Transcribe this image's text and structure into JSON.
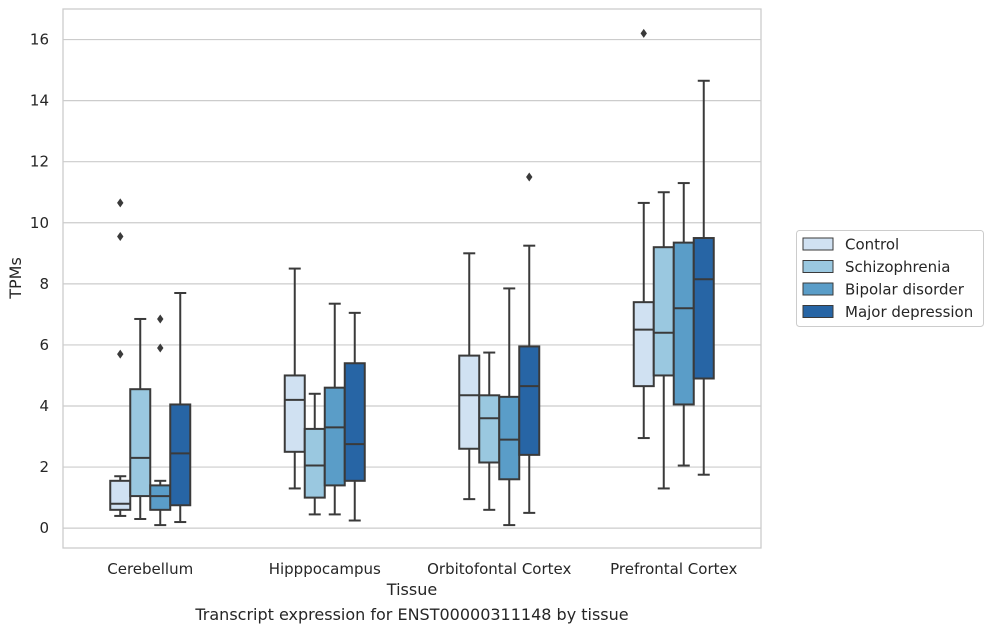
{
  "chart_data": {
    "type": "boxplot",
    "xlabel": "Tissue",
    "ylabel": "TPMs",
    "caption": "Transcript expression for ENST00000311148 by tissue",
    "ylim": [
      -0.65,
      17
    ],
    "y_ticks": [
      0,
      2,
      4,
      6,
      8,
      10,
      12,
      14,
      16
    ],
    "grid": "horizontal",
    "legend_placement": "right",
    "categories": [
      "Cerebellum",
      "Hipppocampus",
      "Orbitofontal Cortex",
      "Prefrontal Cortex"
    ],
    "series": [
      {
        "name": "Control",
        "color": "#d0e1f2",
        "boxes": [
          {
            "whislo": 0.4,
            "q1": 0.6,
            "med": 0.8,
            "q3": 1.55,
            "whishi": 1.7,
            "fliers": [
              5.7,
              9.55,
              10.65
            ]
          },
          {
            "whislo": 1.3,
            "q1": 2.5,
            "med": 4.2,
            "q3": 5.0,
            "whishi": 8.5,
            "fliers": []
          },
          {
            "whislo": 0.95,
            "q1": 2.6,
            "med": 4.35,
            "q3": 5.65,
            "whishi": 9.0,
            "fliers": []
          },
          {
            "whislo": 2.95,
            "q1": 4.65,
            "med": 6.5,
            "q3": 7.4,
            "whishi": 10.65,
            "fliers": [
              16.2
            ]
          }
        ]
      },
      {
        "name": "Schizophrenia",
        "color": "#9ac8e0",
        "boxes": [
          {
            "whislo": 0.3,
            "q1": 1.05,
            "med": 2.3,
            "q3": 4.55,
            "whishi": 6.85,
            "fliers": []
          },
          {
            "whislo": 0.45,
            "q1": 1.0,
            "med": 2.05,
            "q3": 3.25,
            "whishi": 4.4,
            "fliers": []
          },
          {
            "whislo": 0.6,
            "q1": 2.15,
            "med": 3.6,
            "q3": 4.35,
            "whishi": 5.75,
            "fliers": []
          },
          {
            "whislo": 1.3,
            "q1": 5.0,
            "med": 6.4,
            "q3": 9.2,
            "whishi": 11.0,
            "fliers": []
          }
        ]
      },
      {
        "name": "Bipolar disorder",
        "color": "#5a9dc8",
        "boxes": [
          {
            "whislo": 0.1,
            "q1": 0.6,
            "med": 1.05,
            "q3": 1.4,
            "whishi": 1.55,
            "fliers": [
              5.9,
              6.85
            ]
          },
          {
            "whislo": 0.45,
            "q1": 1.4,
            "med": 3.3,
            "q3": 4.6,
            "whishi": 7.35,
            "fliers": []
          },
          {
            "whislo": 0.1,
            "q1": 1.6,
            "med": 2.9,
            "q3": 4.3,
            "whishi": 7.85,
            "fliers": []
          },
          {
            "whislo": 2.05,
            "q1": 4.05,
            "med": 7.2,
            "q3": 9.35,
            "whishi": 11.3,
            "fliers": []
          }
        ]
      },
      {
        "name": "Major depression",
        "color": "#2765a5",
        "boxes": [
          {
            "whislo": 0.2,
            "q1": 0.75,
            "med": 2.45,
            "q3": 4.05,
            "whishi": 7.7,
            "fliers": []
          },
          {
            "whislo": 0.25,
            "q1": 1.55,
            "med": 2.75,
            "q3": 5.4,
            "whishi": 7.05,
            "fliers": []
          },
          {
            "whislo": 0.5,
            "q1": 2.4,
            "med": 4.65,
            "q3": 5.95,
            "whishi": 9.25,
            "fliers": [
              11.5
            ]
          },
          {
            "whislo": 1.75,
            "q1": 4.9,
            "med": 8.15,
            "q3": 9.5,
            "whishi": 14.65,
            "fliers": []
          }
        ]
      }
    ]
  }
}
